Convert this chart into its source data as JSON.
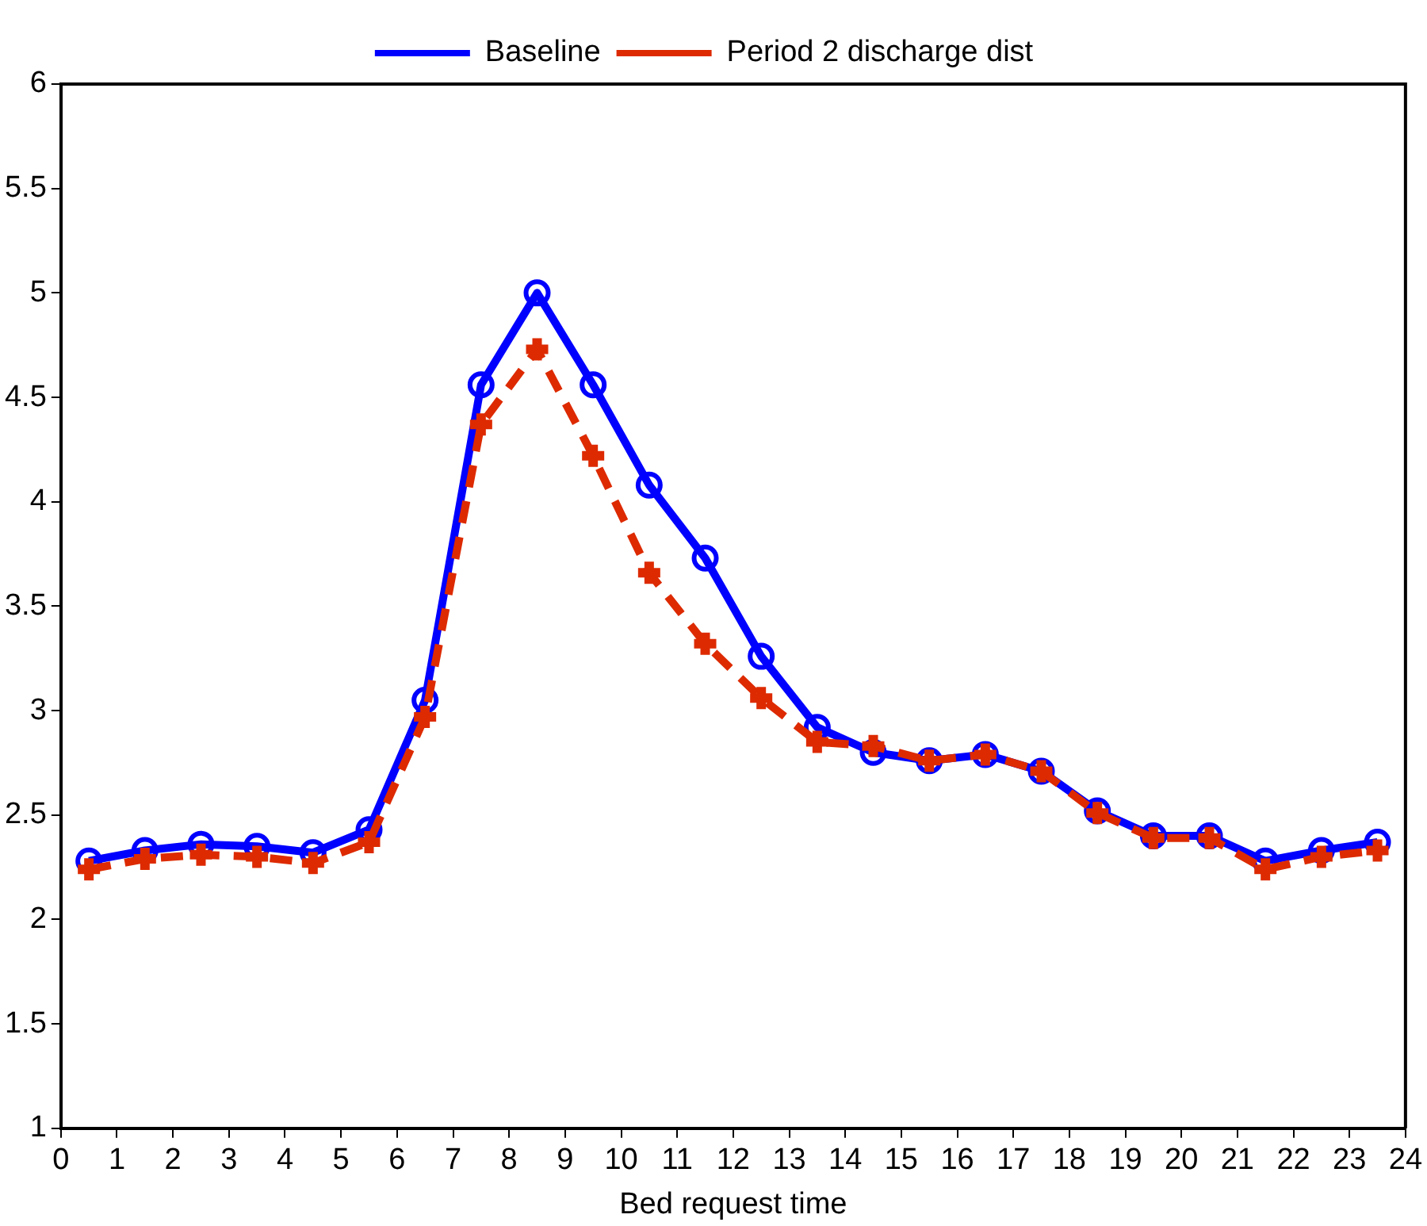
{
  "chart_data": {
    "type": "line",
    "xlabel": "Bed request time",
    "x": [
      0.5,
      1.5,
      2.5,
      3.5,
      4.5,
      5.5,
      6.5,
      7.5,
      8.5,
      9.5,
      10.5,
      11.5,
      12.5,
      13.5,
      14.5,
      15.5,
      16.5,
      17.5,
      18.5,
      19.5,
      20.5,
      21.5,
      22.5,
      23.5
    ],
    "series": [
      {
        "name": "Baseline",
        "color": "#0000ff",
        "marker": "circle",
        "line_style": "solid",
        "values": [
          2.28,
          2.33,
          2.36,
          2.35,
          2.32,
          2.43,
          3.05,
          4.56,
          5.0,
          4.56,
          4.08,
          3.73,
          3.26,
          2.92,
          2.8,
          2.76,
          2.79,
          2.71,
          2.52,
          2.4,
          2.4,
          2.28,
          2.33,
          2.37
        ]
      },
      {
        "name": "Period 2 discharge dist",
        "color": "#dd2a00",
        "marker": "cross",
        "line_style": "dashed",
        "values": [
          2.24,
          2.29,
          2.31,
          2.3,
          2.27,
          2.37,
          2.97,
          4.37,
          4.73,
          4.22,
          3.66,
          3.32,
          3.06,
          2.85,
          2.83,
          2.76,
          2.79,
          2.71,
          2.51,
          2.39,
          2.39,
          2.24,
          2.3,
          2.33
        ]
      }
    ],
    "xlim": [
      0,
      24
    ],
    "xticks": [
      0,
      1,
      2,
      3,
      4,
      5,
      6,
      7,
      8,
      9,
      10,
      11,
      12,
      13,
      14,
      15,
      16,
      17,
      18,
      19,
      20,
      21,
      22,
      23,
      24
    ],
    "ylim": [
      1,
      6
    ],
    "yticks": [
      1,
      1.5,
      2,
      2.5,
      3,
      3.5,
      4,
      4.5,
      5,
      5.5,
      6
    ],
    "grid": false,
    "legend": "top"
  }
}
